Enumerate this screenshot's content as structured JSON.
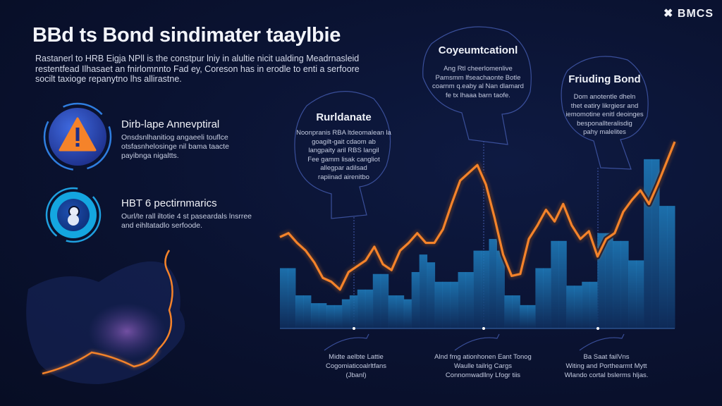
{
  "brand": {
    "logo_text": "BMCS",
    "logo_mark": "✖"
  },
  "title": "BBd ts Bond sindimater taaylbie",
  "intro_lines": [
    "Rastanerl to HRB Eigja NPll is the constpur lniy in alultie nicit ualding Meadrnasleid",
    "restentfead Ilhasaet an fnirlomnnto Fad ey, Coreson has in erodle to enti a serfoore",
    "socilt taxioge repanytno lhs allirastne."
  ],
  "features": [
    {
      "icon": "warning-icon",
      "heading": "Dirb-lape Annevptiral",
      "lines": [
        "Onsdsnlhanitiog angaeeli touflce",
        "otsfasnhelosinge nil bama taacte",
        "payibnga nigaltts."
      ]
    },
    {
      "icon": "security-badge-icon",
      "heading": "HBT 6 pectirnmarics",
      "lines": [
        "Ourl/te rall iltotie 4 st paseardals lnsrree",
        "and eihltatadlo serfoode."
      ]
    }
  ],
  "bubbles": [
    {
      "heading": "Rurldanate",
      "lines": [
        "Noonpranis RBA ltdeomalean la",
        "goagilt-gait cdaom ab",
        "langpaity aril RBS langil",
        "Fee gamm lisak cangliot",
        "allegpar adilsad",
        "rapiinad airenitbo"
      ]
    },
    {
      "heading": "Coyeumtcationl",
      "lines": [
        "Ang Rtl cheerlomenlive",
        "Pamsmm lfseachaonte Botle",
        "coarnm q.eaby al Nan dlamard",
        "fe tx lhaaa barn taofe."
      ]
    },
    {
      "heading": "Friuding Bond",
      "lines": [
        "Dom anotentle dheln",
        "thet eatiry likrgiesr and",
        "iemomotine enitl deoinges",
        "besponallteralisdig",
        "pahy malelites"
      ]
    }
  ],
  "captions": [
    {
      "lines": [
        "Midte aelbte Lattie",
        "Cogomiaticoalrltfans",
        "(Jbanl)"
      ]
    },
    {
      "lines": [
        "Alnd fmg ationhonen Eant Tonog",
        "Waulle tailrig Cargs",
        "Connomwadllny Lfogr tiis"
      ]
    },
    {
      "lines": [
        "Ba Saat failVns",
        "Witing and Porthearmt Mytt",
        "Wlando cortal bslerms hljas."
      ]
    }
  ],
  "colors": {
    "background": "#0a1230",
    "line": "#f5832a",
    "bars": "#1d6fa8",
    "accent": "#2f5fd0"
  },
  "chart_data": {
    "type": "line",
    "title": "",
    "xlabel": "",
    "ylabel": "",
    "ylim": [
      0,
      100
    ],
    "line_values": [
      47,
      49,
      44,
      40,
      34,
      26,
      24,
      20,
      29,
      32,
      35,
      42,
      33,
      30,
      40,
      44,
      49,
      44,
      44,
      51,
      64,
      76,
      80,
      84,
      74,
      57,
      38,
      27,
      28,
      46,
      53,
      61,
      55,
      64,
      53,
      46,
      50,
      37,
      46,
      49,
      60,
      66,
      71,
      64,
      74,
      85,
      96
    ],
    "bar_values": [
      31,
      31,
      17,
      17,
      13,
      13,
      12,
      12,
      15,
      17,
      20,
      20,
      28,
      28,
      17,
      17,
      15,
      29,
      38,
      34,
      24,
      24,
      24,
      29,
      29,
      40,
      40,
      46,
      40,
      17,
      17,
      12,
      12,
      31,
      31,
      45,
      45,
      22,
      22,
      24,
      24,
      49,
      49,
      45,
      45,
      35,
      35,
      87,
      87,
      63,
      63
    ]
  }
}
